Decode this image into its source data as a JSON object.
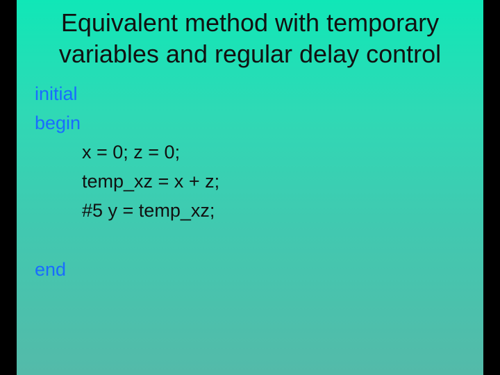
{
  "slide": {
    "title": "Equivalent method with temporary variables and regular delay control",
    "title_fontsize": 36,
    "title_color": "#111111",
    "background_gradient": [
      "#10e7b7",
      "#2fd9b5",
      "#41c9b0",
      "#54baa9"
    ],
    "keyword_color": "#1a6cff",
    "body_color": "#111111",
    "body_fontsize": 27,
    "side_bar_color": "#000000",
    "code": {
      "kw_initial": "initial",
      "kw_begin": "begin",
      "line1": "x = 0; z = 0;",
      "line2": "temp_xz = x + z;",
      "line3": "#5 y = temp_xz;",
      "blank": " ",
      "kw_end": "end"
    }
  }
}
